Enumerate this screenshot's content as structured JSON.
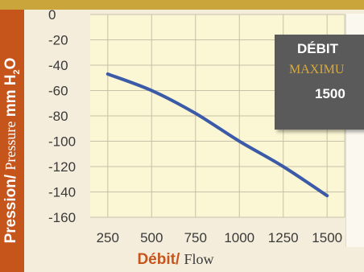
{
  "chart_data": {
    "type": "line",
    "title": "",
    "xlabel_fr": "Débit",
    "xlabel_sep": "/",
    "xlabel_en": "Flow",
    "ylabel_fr": "Pression",
    "ylabel_sep": "/",
    "ylabel_en": "Pressure",
    "ylabel_unit": "mm H",
    "ylabel_unit_sub": "2",
    "ylabel_unit_suffix": "O",
    "xlim": [
      150,
      1600
    ],
    "ylim": [
      -160,
      0
    ],
    "grid": true,
    "x_ticks": [
      250,
      500,
      750,
      1000,
      1250,
      1500
    ],
    "x_tick_labels": [
      "250",
      "500",
      "750",
      "1000",
      "1250",
      "1500"
    ],
    "y_ticks": [
      0,
      -20,
      -40,
      -60,
      -80,
      -100,
      -120,
      -140,
      -160
    ],
    "y_tick_labels": [
      "0",
      "-20",
      "-40",
      "-60",
      "-80",
      "-100",
      "-120",
      "-140",
      "-160"
    ],
    "series": [
      {
        "color": "#3b5aa8",
        "x": [
          250,
          500,
          750,
          1000,
          1250,
          1500
        ],
        "y": [
          -47,
          -60,
          -78,
          -100,
          -120,
          -143
        ]
      }
    ]
  },
  "callout": {
    "line1": "DÉBIT",
    "line2": "MAXIMU",
    "line3": "1500"
  },
  "colors": {
    "plot_background": "#fbf6d3",
    "grid": "#c8c1a8",
    "accent": "#c6551c",
    "series": "#3b5aa8"
  }
}
